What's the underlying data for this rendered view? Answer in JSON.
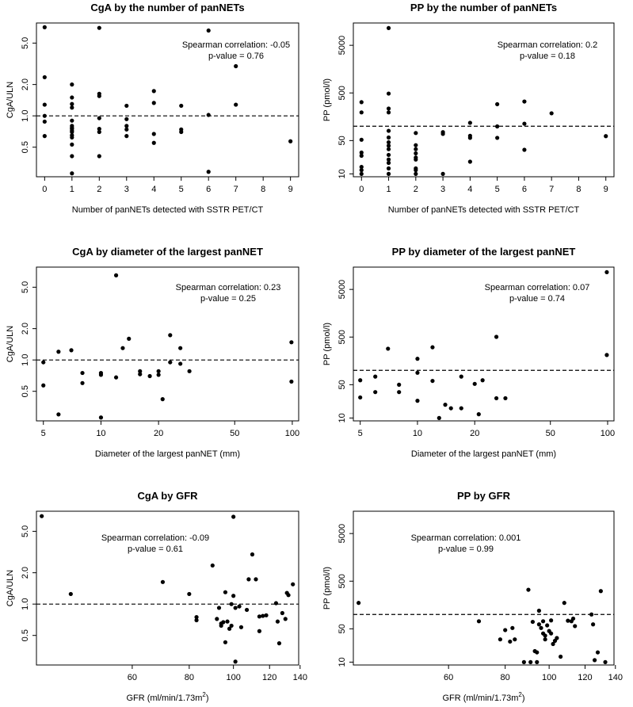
{
  "chart_data": [
    {
      "type": "scatter",
      "title": "CgA by the number of panNETs",
      "xlabel": "Number of panNETs detected with SSTR PET/CT",
      "ylabel": "CgA/ULN",
      "xscale": "linear",
      "yscale": "log",
      "xlim": [
        -0.3,
        9.3
      ],
      "ylim": [
        0.26,
        7.8
      ],
      "xticks": [
        0,
        1,
        2,
        3,
        4,
        5,
        6,
        7,
        8,
        9
      ],
      "yticks": [
        0.5,
        1.0,
        2.0,
        5.0
      ],
      "xtick_labels": [
        "0",
        "1",
        "2",
        "3",
        "4",
        "5",
        "6",
        "7",
        "8",
        "9"
      ],
      "ytick_labels": [
        "0.5",
        "1.0",
        "2.0",
        "5.0"
      ],
      "reference_line": 1.0,
      "annotation": [
        "Spearman correlation: -0.05",
        "p-value = 0.76"
      ],
      "points": [
        [
          0,
          7.1
        ],
        [
          0,
          2.35
        ],
        [
          0,
          1.28
        ],
        [
          0,
          1.0
        ],
        [
          0,
          0.88
        ],
        [
          0,
          0.64
        ],
        [
          1,
          2.0
        ],
        [
          1,
          1.5
        ],
        [
          1,
          1.3
        ],
        [
          1,
          1.2
        ],
        [
          1,
          0.9
        ],
        [
          1,
          0.8
        ],
        [
          1,
          0.77
        ],
        [
          1,
          0.75
        ],
        [
          1,
          0.72
        ],
        [
          1,
          0.7
        ],
        [
          1,
          0.65
        ],
        [
          1,
          0.62
        ],
        [
          1,
          0.53
        ],
        [
          1,
          0.41
        ],
        [
          1,
          0.28
        ],
        [
          2,
          7.0
        ],
        [
          2,
          1.63
        ],
        [
          2,
          1.55
        ],
        [
          2,
          0.95
        ],
        [
          2,
          0.75
        ],
        [
          2,
          0.7
        ],
        [
          2,
          0.41
        ],
        [
          3,
          1.25
        ],
        [
          3,
          0.93
        ],
        [
          3,
          0.8
        ],
        [
          3,
          0.74
        ],
        [
          3,
          0.64
        ],
        [
          4,
          1.73
        ],
        [
          4,
          1.33
        ],
        [
          4,
          0.67
        ],
        [
          4,
          0.55
        ],
        [
          5,
          1.25
        ],
        [
          5,
          0.74
        ],
        [
          5,
          0.7
        ],
        [
          6,
          6.6
        ],
        [
          6,
          1.02
        ],
        [
          6,
          0.29
        ],
        [
          7,
          3.0
        ],
        [
          7,
          1.28
        ],
        [
          9,
          0.57
        ]
      ]
    },
    {
      "type": "scatter",
      "title": "PP by the number of panNETs",
      "xlabel": "Number of panNETs detected with SSTR PET/CT",
      "ylabel": "PP (pmol/l)",
      "xscale": "linear",
      "yscale": "log",
      "xlim": [
        -0.3,
        9.3
      ],
      "ylim": [
        8.7,
        14700
      ],
      "xticks": [
        0,
        1,
        2,
        3,
        4,
        5,
        6,
        7,
        8,
        9
      ],
      "yticks": [
        10,
        50,
        500,
        5000
      ],
      "xtick_labels": [
        "0",
        "1",
        "2",
        "3",
        "4",
        "5",
        "6",
        "7",
        "8",
        "9"
      ],
      "ytick_labels": [
        "10",
        "50",
        "500",
        "5000"
      ],
      "reference_line": 100,
      "annotation": [
        "Spearman correlation: 0.2",
        "p-value = 0.18"
      ],
      "points": [
        [
          0,
          320
        ],
        [
          0,
          195
        ],
        [
          0,
          52
        ],
        [
          0,
          28
        ],
        [
          0,
          24
        ],
        [
          0,
          14
        ],
        [
          0,
          12
        ],
        [
          0,
          10
        ],
        [
          1,
          11500
        ],
        [
          1,
          485
        ],
        [
          1,
          235
        ],
        [
          1,
          195
        ],
        [
          1,
          80
        ],
        [
          1,
          58
        ],
        [
          1,
          46
        ],
        [
          1,
          39
        ],
        [
          1,
          33
        ],
        [
          1,
          25
        ],
        [
          1,
          20
        ],
        [
          1,
          17
        ],
        [
          1,
          13
        ],
        [
          1,
          10
        ],
        [
          2,
          72
        ],
        [
          2,
          40
        ],
        [
          2,
          33
        ],
        [
          2,
          27
        ],
        [
          2,
          22
        ],
        [
          2,
          20
        ],
        [
          2,
          13
        ],
        [
          2,
          12
        ],
        [
          2,
          10
        ],
        [
          3,
          75
        ],
        [
          3,
          69
        ],
        [
          3,
          10
        ],
        [
          4,
          118
        ],
        [
          4,
          63
        ],
        [
          4,
          57
        ],
        [
          4,
          18
        ],
        [
          5,
          290
        ],
        [
          5,
          99
        ],
        [
          5,
          57
        ],
        [
          6,
          330
        ],
        [
          6,
          113
        ],
        [
          6,
          32
        ],
        [
          7,
          187
        ],
        [
          9,
          62
        ]
      ]
    },
    {
      "type": "scatter",
      "title": "CgA by diameter of the largest panNET",
      "xlabel": "Diameter of the largest panNET (mm)",
      "ylabel": "CgA/ULN",
      "xscale": "log",
      "yscale": "log",
      "xlim": [
        4.6,
        108
      ],
      "ylim": [
        0.26,
        7.8
      ],
      "xticks": [
        5,
        10,
        20,
        50,
        100
      ],
      "yticks": [
        0.5,
        1.0,
        2.0,
        5.0
      ],
      "xtick_labels": [
        "5",
        "10",
        "20",
        "50",
        "100"
      ],
      "ytick_labels": [
        "0.5",
        "1.0",
        "2.0",
        "5.0"
      ],
      "reference_line": 1.0,
      "annotation": [
        "Spearman correlation: 0.23",
        "p-value = 0.25"
      ],
      "points": [
        [
          5,
          0.95
        ],
        [
          5,
          0.57
        ],
        [
          6,
          1.2
        ],
        [
          6,
          0.3
        ],
        [
          7,
          1.24
        ],
        [
          8,
          0.75
        ],
        [
          8,
          0.6
        ],
        [
          10,
          0.75
        ],
        [
          10,
          0.72
        ],
        [
          10,
          0.28
        ],
        [
          12,
          6.5
        ],
        [
          12,
          0.68
        ],
        [
          13,
          1.3
        ],
        [
          14,
          1.6
        ],
        [
          16,
          0.78
        ],
        [
          16,
          0.73
        ],
        [
          18,
          0.7
        ],
        [
          20,
          0.78
        ],
        [
          20,
          0.72
        ],
        [
          21,
          0.42
        ],
        [
          23,
          1.73
        ],
        [
          23,
          0.95
        ],
        [
          26,
          1.3
        ],
        [
          26,
          0.92
        ],
        [
          29,
          0.78
        ],
        [
          99,
          1.48
        ],
        [
          99,
          0.62
        ]
      ]
    },
    {
      "type": "scatter",
      "title": "PP by diameter of the largest panNET",
      "xlabel": "Diameter of the largest panNET (mm)",
      "ylabel": "PP (pmol/l)",
      "xscale": "log",
      "yscale": "log",
      "xlim": [
        4.6,
        108
      ],
      "ylim": [
        8.7,
        14700
      ],
      "xticks": [
        5,
        10,
        20,
        50,
        100
      ],
      "yticks": [
        10,
        50,
        500,
        5000
      ],
      "xtick_labels": [
        "5",
        "10",
        "20",
        "50",
        "100"
      ],
      "ytick_labels": [
        "10",
        "50",
        "500",
        "5000"
      ],
      "reference_line": 100,
      "annotation": [
        "Spearman correlation: 0.07",
        "p-value = 0.74"
      ],
      "points": [
        [
          5,
          62
        ],
        [
          5,
          27
        ],
        [
          6,
          74
        ],
        [
          6,
          35
        ],
        [
          7,
          285
        ],
        [
          8,
          50
        ],
        [
          8,
          35
        ],
        [
          10,
          175
        ],
        [
          10,
          89
        ],
        [
          10,
          23
        ],
        [
          12,
          305
        ],
        [
          12,
          60
        ],
        [
          13,
          10
        ],
        [
          14,
          19
        ],
        [
          15,
          16
        ],
        [
          17,
          16
        ],
        [
          17,
          74
        ],
        [
          20,
          52
        ],
        [
          21,
          12
        ],
        [
          22,
          62
        ],
        [
          26,
          505
        ],
        [
          26,
          26
        ],
        [
          29,
          26
        ],
        [
          99,
          11500
        ],
        [
          99,
          210
        ]
      ]
    },
    {
      "type": "scatter",
      "title": "CgA by GFR",
      "xlabel": "GFR (ml/min/1.73m",
      "xlabel_superscript": "2",
      "xlabel_suffix": ")",
      "ylabel": "CgA/ULN",
      "xscale": "log",
      "yscale": "log",
      "xlim": [
        37,
        139
      ],
      "ylim": [
        0.26,
        7.8
      ],
      "xticks": [
        60,
        80,
        100,
        120,
        140
      ],
      "yticks": [
        0.5,
        1.0,
        2.0,
        5.0
      ],
      "xtick_labels": [
        "60",
        "80",
        "100",
        "120",
        "140"
      ],
      "ytick_labels": [
        "0.5",
        "1.0",
        "2.0",
        "5.0"
      ],
      "reference_line": 1.0,
      "annotation": [
        "Spearman correlation: -0.09",
        "p-value = 0.61"
      ],
      "points": [
        [
          38,
          7.0
        ],
        [
          44,
          1.25
        ],
        [
          70,
          1.63
        ],
        [
          80,
          1.25
        ],
        [
          83,
          0.75
        ],
        [
          83,
          0.7
        ],
        [
          90,
          2.35
        ],
        [
          92,
          0.72
        ],
        [
          93,
          0.92
        ],
        [
          94,
          0.65
        ],
        [
          94,
          0.62
        ],
        [
          95,
          0.67
        ],
        [
          96,
          1.3
        ],
        [
          96,
          0.43
        ],
        [
          97,
          0.68
        ],
        [
          98,
          0.58
        ],
        [
          99,
          1.0
        ],
        [
          99,
          0.62
        ],
        [
          100,
          1.2
        ],
        [
          100,
          6.9
        ],
        [
          101,
          0.92
        ],
        [
          101,
          0.28
        ],
        [
          103,
          0.95
        ],
        [
          104,
          0.6
        ],
        [
          107,
          0.88
        ],
        [
          108,
          1.73
        ],
        [
          110,
          3.0
        ],
        [
          112,
          1.73
        ],
        [
          114,
          0.76
        ],
        [
          114,
          0.55
        ],
        [
          116,
          0.77
        ],
        [
          118,
          0.78
        ],
        [
          124,
          1.02
        ],
        [
          125,
          0.68
        ],
        [
          126,
          0.42
        ],
        [
          128,
          0.82
        ],
        [
          130,
          0.72
        ],
        [
          131,
          1.28
        ],
        [
          132,
          1.22
        ],
        [
          135,
          1.55
        ]
      ]
    },
    {
      "type": "scatter",
      "title": "PP by GFR",
      "xlabel": "GFR (ml/min/1.73m",
      "xlabel_superscript": "2",
      "xlabel_suffix": ")",
      "ylabel": "PP (pmol/l)",
      "xscale": "log",
      "yscale": "log",
      "xlim": [
        37,
        139
      ],
      "ylim": [
        8.7,
        14700
      ],
      "xticks": [
        60,
        80,
        100,
        120,
        140
      ],
      "yticks": [
        10,
        50,
        500,
        5000
      ],
      "xtick_labels": [
        "60",
        "80",
        "100",
        "120",
        "140"
      ],
      "ytick_labels": [
        "10",
        "50",
        "500",
        "5000"
      ],
      "reference_line": 100,
      "annotation": [
        "Spearman correlation: 0.001",
        "p-value = 0.99"
      ],
      "points": [
        [
          38,
          175
        ],
        [
          70,
          72
        ],
        [
          78,
          30
        ],
        [
          80,
          47
        ],
        [
          82,
          27
        ],
        [
          83,
          52
        ],
        [
          84,
          30
        ],
        [
          88,
          10
        ],
        [
          90,
          330
        ],
        [
          91,
          10
        ],
        [
          92,
          70
        ],
        [
          93,
          17
        ],
        [
          94,
          16
        ],
        [
          94,
          10
        ],
        [
          95,
          62
        ],
        [
          95,
          120
        ],
        [
          96,
          52
        ],
        [
          97,
          72
        ],
        [
          97,
          40
        ],
        [
          98,
          36
        ],
        [
          98,
          30
        ],
        [
          99,
          59
        ],
        [
          100,
          45
        ],
        [
          101,
          75
        ],
        [
          101,
          40
        ],
        [
          102,
          24
        ],
        [
          103,
          28
        ],
        [
          104,
          32
        ],
        [
          106,
          13
        ],
        [
          108,
          175
        ],
        [
          110,
          74
        ],
        [
          112,
          72
        ],
        [
          113,
          82
        ],
        [
          114,
          57
        ],
        [
          124,
          100
        ],
        [
          125,
          62
        ],
        [
          126,
          11
        ],
        [
          128,
          16
        ],
        [
          130,
          310
        ],
        [
          133,
          10
        ]
      ]
    }
  ]
}
